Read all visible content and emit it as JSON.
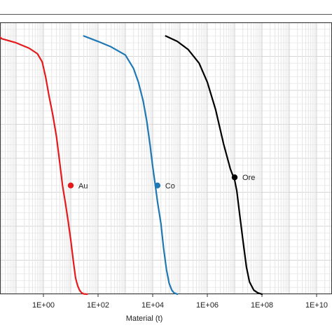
{
  "chart_data": {
    "type": "line",
    "xlabel": "Material (t)",
    "ylabel": "",
    "xscale": "log",
    "xlim": [
      0.01,
      10000000000
    ],
    "ylim": [
      0,
      1
    ],
    "grid": true,
    "x_tick_labels": [
      "1E+00",
      "1E+02",
      "1E+04",
      "1E+06",
      "1E+08",
      "1E+10"
    ],
    "x_tick_values": [
      1,
      100,
      10000,
      1000000,
      100000000,
      10000000000
    ],
    "series": [
      {
        "name": "Au",
        "color": "#e41a1c",
        "x": [
          0.01,
          0.03,
          0.1,
          0.3,
          0.6,
          0.9,
          1.2,
          1.6,
          2.2,
          3,
          4,
          5,
          6.5,
          8,
          10,
          12.5,
          15,
          18,
          21,
          24,
          27,
          30,
          40
        ],
        "y": [
          0.95,
          0.94,
          0.925,
          0.905,
          0.885,
          0.855,
          0.8,
          0.73,
          0.66,
          0.58,
          0.48,
          0.4,
          0.33,
          0.27,
          0.2,
          0.12,
          0.06,
          0.03,
          0.015,
          0.007,
          0.003,
          0.001,
          0
        ]
      },
      {
        "name": "Co",
        "color": "#1f78b4",
        "x": [
          30,
          100,
          300,
          1000,
          2000,
          3000,
          4500,
          6000,
          8000,
          10000,
          12500,
          15000,
          20000,
          25000,
          32000,
          40000,
          50000,
          60000,
          80000
        ],
        "y": [
          0.95,
          0.93,
          0.91,
          0.88,
          0.83,
          0.78,
          0.71,
          0.64,
          0.55,
          0.47,
          0.4,
          0.34,
          0.26,
          0.17,
          0.09,
          0.04,
          0.015,
          0.005,
          0
        ]
      },
      {
        "name": "Ore",
        "color": "#000000",
        "x": [
          30000,
          80000,
          200000,
          500000,
          1000000,
          2000000,
          4000000,
          7000000,
          10000000,
          12000000,
          15000000,
          20000000,
          27000000,
          35000000,
          50000000,
          70000000,
          100000000
        ],
        "y": [
          0.95,
          0.93,
          0.9,
          0.85,
          0.78,
          0.68,
          0.55,
          0.46,
          0.42,
          0.38,
          0.3,
          0.2,
          0.1,
          0.045,
          0.015,
          0.005,
          0
        ]
      }
    ],
    "point_labels": [
      {
        "series": "Au",
        "x": 10,
        "y": 0.4,
        "label": "Au"
      },
      {
        "series": "Co",
        "x": 15000,
        "y": 0.4,
        "label": "Co"
      },
      {
        "series": "Ore",
        "x": 10000000,
        "y": 0.43,
        "label": "Ore"
      }
    ]
  }
}
